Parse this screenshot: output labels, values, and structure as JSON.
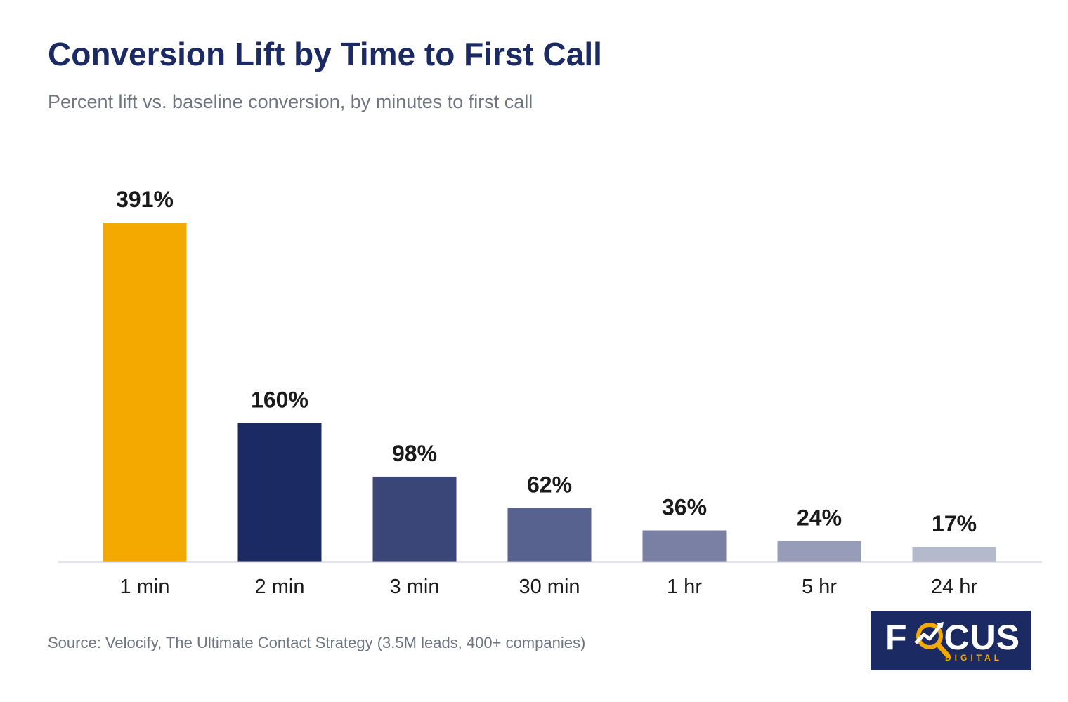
{
  "title": "Conversion Lift by Time to First Call",
  "subtitle": "Percent lift vs. baseline conversion, by minutes to first call",
  "source": "Source: Velocify, The Ultimate Contact Strategy (3.5M leads, 400+ companies)",
  "logo": {
    "left_text": "F",
    "right_text": "CUS",
    "sub_text": "DIGITAL"
  },
  "colors": {
    "title": "#1b2a63",
    "subtitle": "#6e7480",
    "highlight": "#f4a900",
    "axis": "#c8cad0",
    "label": "#1a1a1a"
  },
  "chart_data": {
    "type": "bar",
    "categories": [
      "1 min",
      "2 min",
      "3 min",
      "30 min",
      "1 hr",
      "5 hr",
      "24 hr"
    ],
    "values": [
      391,
      160,
      98,
      62,
      36,
      24,
      17
    ],
    "value_labels": [
      "391%",
      "160%",
      "98%",
      "62%",
      "36%",
      "24%",
      "17%"
    ],
    "bar_colors": [
      "#f4a900",
      "#1b2a63",
      "#3a4678",
      "#58628e",
      "#7980a3",
      "#979db8",
      "#b4b9cb"
    ],
    "title": "Conversion Lift by Time to First Call",
    "subtitle": "Percent lift vs. baseline conversion, by minutes to first call",
    "xlabel": "",
    "ylabel": "",
    "ylim": [
      0,
      391
    ],
    "grid": false,
    "legend": "none"
  }
}
